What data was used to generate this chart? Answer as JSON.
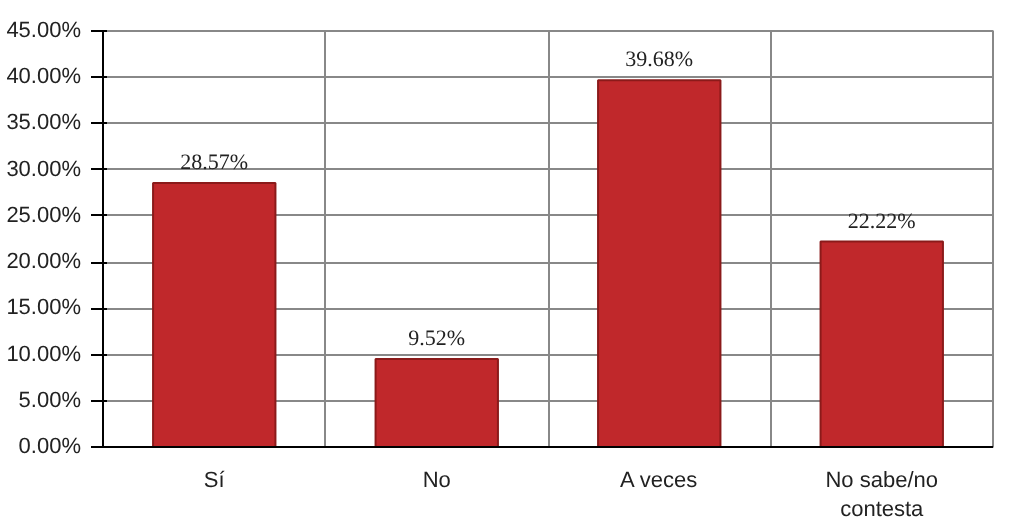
{
  "chart_data": {
    "type": "bar",
    "categories": [
      "Sí",
      "No",
      "A veces",
      "No sabe/no contesta"
    ],
    "values": [
      28.57,
      9.52,
      39.68,
      22.22
    ],
    "value_labels": [
      "28.57%",
      "9.52%",
      "39.68%",
      "22.22%"
    ],
    "color": "#c0282b",
    "ylim": [
      0,
      45
    ],
    "yticks": [
      {
        "value": 0,
        "label": "0.00%"
      },
      {
        "value": 5,
        "label": "5.00%"
      },
      {
        "value": 10,
        "label": "10.00%"
      },
      {
        "value": 15,
        "label": "15.00%"
      },
      {
        "value": 20,
        "label": "20.00%"
      },
      {
        "value": 25,
        "label": "25.00%"
      },
      {
        "value": 30,
        "label": "30.00%"
      },
      {
        "value": 35,
        "label": "35.00%"
      },
      {
        "value": 40,
        "label": "40.00%"
      },
      {
        "value": 45,
        "label": "45.00%"
      }
    ],
    "grid": true
  }
}
